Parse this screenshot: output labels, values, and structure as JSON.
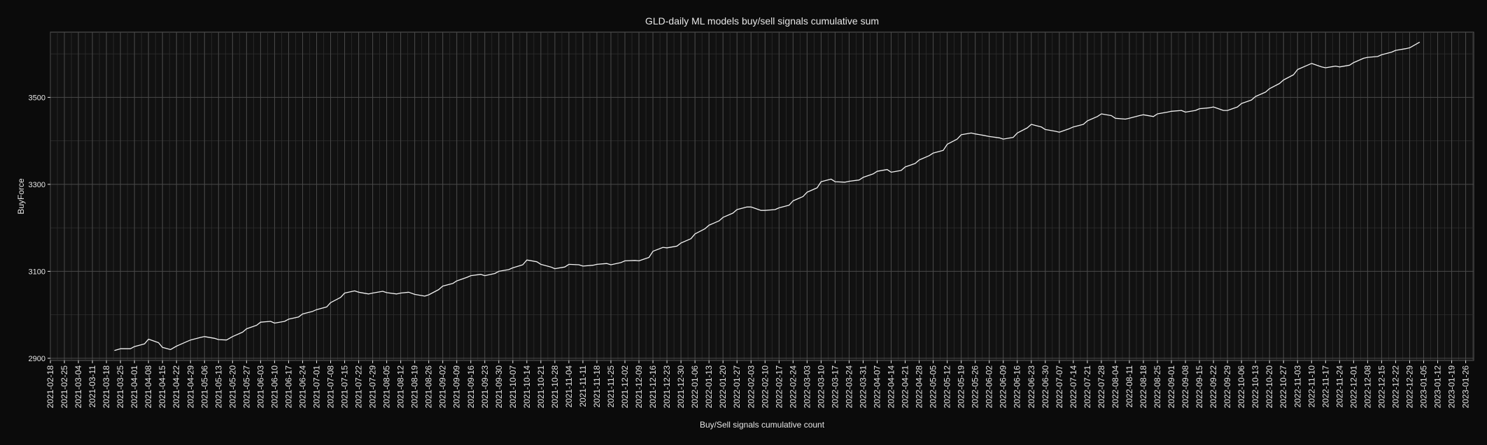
{
  "chart_data": {
    "type": "line",
    "title": "GLD-daily ML models buy/sell signals cumulative sum",
    "xlabel": "Buy/Sell signals cumulative count",
    "ylabel": "BuyForce",
    "ylim": [
      2895,
      3650
    ],
    "xlim": [
      "2021-02-18",
      "2023-01-30"
    ],
    "yticks": [
      2900,
      3100,
      3300,
      3500
    ],
    "xticks": [
      "2021-02-18",
      "2021-02-25",
      "2021-03-04",
      "2021-03-11",
      "2021-03-18",
      "2021-03-25",
      "2021-04-01",
      "2021-04-08",
      "2021-04-15",
      "2021-04-22",
      "2021-04-29",
      "2021-05-06",
      "2021-05-13",
      "2021-05-20",
      "2021-05-27",
      "2021-06-03",
      "2021-06-10",
      "2021-06-17",
      "2021-06-24",
      "2021-07-01",
      "2021-07-08",
      "2021-07-15",
      "2021-07-22",
      "2021-07-29",
      "2021-08-05",
      "2021-08-12",
      "2021-08-19",
      "2021-08-26",
      "2021-09-02",
      "2021-09-09",
      "2021-09-16",
      "2021-09-23",
      "2021-09-30",
      "2021-10-07",
      "2021-10-14",
      "2021-10-21",
      "2021-10-28",
      "2021-11-04",
      "2021-11-11",
      "2021-11-18",
      "2021-11-25",
      "2021-12-02",
      "2021-12-09",
      "2021-12-16",
      "2021-12-23",
      "2021-12-30",
      "2022-01-06",
      "2022-01-13",
      "2022-01-20",
      "2022-01-27",
      "2022-02-03",
      "2022-02-10",
      "2022-02-17",
      "2022-02-24",
      "2022-03-03",
      "2022-03-10",
      "2022-03-17",
      "2022-03-24",
      "2022-03-31",
      "2022-04-07",
      "2022-04-14",
      "2022-04-21",
      "2022-04-28",
      "2022-05-05",
      "2022-05-12",
      "2022-05-19",
      "2022-05-26",
      "2022-06-02",
      "2022-06-09",
      "2022-06-16",
      "2022-06-23",
      "2022-06-30",
      "2022-07-07",
      "2022-07-14",
      "2022-07-21",
      "2022-07-28",
      "2022-08-04",
      "2022-08-11",
      "2022-08-18",
      "2022-08-25",
      "2022-09-01",
      "2022-09-08",
      "2022-09-15",
      "2022-09-22",
      "2022-09-29",
      "2022-10-06",
      "2022-10-13",
      "2022-10-20",
      "2022-10-27",
      "2022-11-03",
      "2022-11-10",
      "2022-11-17",
      "2022-11-24",
      "2022-12-01",
      "2022-12-08",
      "2022-12-15",
      "2022-12-22",
      "2022-12-29",
      "2023-01-05",
      "2023-01-12",
      "2023-01-19",
      "2023-01-26"
    ],
    "grid": true,
    "colors": {
      "background": "#0b0b0b",
      "panel": "#111111",
      "grid": "#4a4a4a",
      "line": "#f2f2f2",
      "text": "#e6e6e6"
    },
    "series": [
      {
        "points": [
          [
            "2021-03-22",
            2918
          ],
          [
            "2021-03-25",
            2922
          ],
          [
            "2021-03-30",
            2922
          ],
          [
            "2021-04-01",
            2927
          ],
          [
            "2021-04-06",
            2933
          ],
          [
            "2021-04-08",
            2944
          ],
          [
            "2021-04-13",
            2936
          ],
          [
            "2021-04-15",
            2925
          ],
          [
            "2021-04-19",
            2920
          ],
          [
            "2021-04-22",
            2928
          ],
          [
            "2021-04-27",
            2938
          ],
          [
            "2021-04-29",
            2942
          ],
          [
            "2021-05-04",
            2948
          ],
          [
            "2021-05-06",
            2950
          ],
          [
            "2021-05-11",
            2946
          ],
          [
            "2021-05-13",
            2943
          ],
          [
            "2021-05-17",
            2942
          ],
          [
            "2021-05-20",
            2950
          ],
          [
            "2021-05-25",
            2960
          ],
          [
            "2021-05-27",
            2968
          ],
          [
            "2021-06-01",
            2976
          ],
          [
            "2021-06-03",
            2983
          ],
          [
            "2021-06-08",
            2985
          ],
          [
            "2021-06-10",
            2981
          ],
          [
            "2021-06-15",
            2985
          ],
          [
            "2021-06-17",
            2990
          ],
          [
            "2021-06-22",
            2995
          ],
          [
            "2021-06-24",
            3002
          ],
          [
            "2021-06-29",
            3008
          ],
          [
            "2021-07-01",
            3012
          ],
          [
            "2021-07-06",
            3018
          ],
          [
            "2021-07-08",
            3028
          ],
          [
            "2021-07-13",
            3040
          ],
          [
            "2021-07-15",
            3050
          ],
          [
            "2021-07-20",
            3055
          ],
          [
            "2021-07-22",
            3052
          ],
          [
            "2021-07-27",
            3048
          ],
          [
            "2021-07-29",
            3050
          ],
          [
            "2021-08-03",
            3054
          ],
          [
            "2021-08-05",
            3051
          ],
          [
            "2021-08-10",
            3048
          ],
          [
            "2021-08-12",
            3050
          ],
          [
            "2021-08-16",
            3052
          ],
          [
            "2021-08-19",
            3047
          ],
          [
            "2021-08-24",
            3043
          ],
          [
            "2021-08-26",
            3046
          ],
          [
            "2021-08-31",
            3058
          ],
          [
            "2021-09-02",
            3066
          ],
          [
            "2021-09-07",
            3072
          ],
          [
            "2021-09-09",
            3078
          ],
          [
            "2021-09-14",
            3086
          ],
          [
            "2021-09-16",
            3090
          ],
          [
            "2021-09-21",
            3093
          ],
          [
            "2021-09-23",
            3090
          ],
          [
            "2021-09-28",
            3095
          ],
          [
            "2021-09-30",
            3100
          ],
          [
            "2021-10-05",
            3104
          ],
          [
            "2021-10-07",
            3108
          ],
          [
            "2021-10-12",
            3115
          ],
          [
            "2021-10-14",
            3126
          ],
          [
            "2021-10-19",
            3122
          ],
          [
            "2021-10-21",
            3116
          ],
          [
            "2021-10-26",
            3110
          ],
          [
            "2021-10-28",
            3106
          ],
          [
            "2021-11-02",
            3110
          ],
          [
            "2021-11-04",
            3116
          ],
          [
            "2021-11-09",
            3115
          ],
          [
            "2021-11-11",
            3112
          ],
          [
            "2021-11-16",
            3114
          ],
          [
            "2021-11-18",
            3116
          ],
          [
            "2021-11-23",
            3118
          ],
          [
            "2021-11-25",
            3115
          ],
          [
            "2021-11-30",
            3120
          ],
          [
            "2021-12-02",
            3124
          ],
          [
            "2021-12-07",
            3125
          ],
          [
            "2021-12-09",
            3124
          ],
          [
            "2021-12-14",
            3132
          ],
          [
            "2021-12-16",
            3146
          ],
          [
            "2021-12-21",
            3155
          ],
          [
            "2021-12-23",
            3154
          ],
          [
            "2021-12-28",
            3158
          ],
          [
            "2021-12-30",
            3165
          ],
          [
            "2022-01-04",
            3175
          ],
          [
            "2022-01-06",
            3186
          ],
          [
            "2022-01-11",
            3198
          ],
          [
            "2022-01-13",
            3206
          ],
          [
            "2022-01-18",
            3216
          ],
          [
            "2022-01-20",
            3224
          ],
          [
            "2022-01-25",
            3234
          ],
          [
            "2022-01-27",
            3242
          ],
          [
            "2022-02-01",
            3248
          ],
          [
            "2022-02-03",
            3248
          ],
          [
            "2022-02-08",
            3240
          ],
          [
            "2022-02-10",
            3240
          ],
          [
            "2022-02-15",
            3242
          ],
          [
            "2022-02-17",
            3246
          ],
          [
            "2022-02-22",
            3252
          ],
          [
            "2022-02-24",
            3262
          ],
          [
            "2022-03-01",
            3272
          ],
          [
            "2022-03-03",
            3282
          ],
          [
            "2022-03-08",
            3292
          ],
          [
            "2022-03-10",
            3306
          ],
          [
            "2022-03-15",
            3312
          ],
          [
            "2022-03-17",
            3306
          ],
          [
            "2022-03-22",
            3305
          ],
          [
            "2022-03-24",
            3307
          ],
          [
            "2022-03-29",
            3310
          ],
          [
            "2022-03-31",
            3316
          ],
          [
            "2022-04-05",
            3324
          ],
          [
            "2022-04-07",
            3330
          ],
          [
            "2022-04-12",
            3334
          ],
          [
            "2022-04-14",
            3328
          ],
          [
            "2022-04-19",
            3332
          ],
          [
            "2022-04-21",
            3340
          ],
          [
            "2022-04-26",
            3348
          ],
          [
            "2022-04-28",
            3356
          ],
          [
            "2022-05-03",
            3366
          ],
          [
            "2022-05-05",
            3372
          ],
          [
            "2022-05-10",
            3378
          ],
          [
            "2022-05-12",
            3392
          ],
          [
            "2022-05-17",
            3404
          ],
          [
            "2022-05-19",
            3414
          ],
          [
            "2022-05-24",
            3418
          ],
          [
            "2022-05-26",
            3416
          ],
          [
            "2022-05-31",
            3412
          ],
          [
            "2022-06-02",
            3410
          ],
          [
            "2022-06-07",
            3407
          ],
          [
            "2022-06-09",
            3404
          ],
          [
            "2022-06-14",
            3408
          ],
          [
            "2022-06-16",
            3418
          ],
          [
            "2022-06-21",
            3430
          ],
          [
            "2022-06-23",
            3438
          ],
          [
            "2022-06-28",
            3432
          ],
          [
            "2022-06-30",
            3426
          ],
          [
            "2022-07-05",
            3422
          ],
          [
            "2022-07-07",
            3420
          ],
          [
            "2022-07-12",
            3428
          ],
          [
            "2022-07-14",
            3432
          ],
          [
            "2022-07-19",
            3438
          ],
          [
            "2022-07-21",
            3446
          ],
          [
            "2022-07-26",
            3456
          ],
          [
            "2022-07-28",
            3462
          ],
          [
            "2022-08-02",
            3458
          ],
          [
            "2022-08-04",
            3452
          ],
          [
            "2022-08-09",
            3450
          ],
          [
            "2022-08-11",
            3452
          ],
          [
            "2022-08-16",
            3458
          ],
          [
            "2022-08-18",
            3460
          ],
          [
            "2022-08-23",
            3456
          ],
          [
            "2022-08-25",
            3462
          ],
          [
            "2022-08-30",
            3466
          ],
          [
            "2022-09-01",
            3468
          ],
          [
            "2022-09-06",
            3470
          ],
          [
            "2022-09-08",
            3466
          ],
          [
            "2022-09-13",
            3470
          ],
          [
            "2022-09-15",
            3474
          ],
          [
            "2022-09-20",
            3476
          ],
          [
            "2022-09-22",
            3478
          ],
          [
            "2022-09-27",
            3470
          ],
          [
            "2022-09-29",
            3470
          ],
          [
            "2022-10-04",
            3478
          ],
          [
            "2022-10-06",
            3486
          ],
          [
            "2022-10-11",
            3494
          ],
          [
            "2022-10-13",
            3502
          ],
          [
            "2022-10-18",
            3512
          ],
          [
            "2022-10-20",
            3520
          ],
          [
            "2022-10-25",
            3532
          ],
          [
            "2022-10-27",
            3540
          ],
          [
            "2022-11-01",
            3552
          ],
          [
            "2022-11-03",
            3564
          ],
          [
            "2022-11-08",
            3574
          ],
          [
            "2022-11-10",
            3578
          ],
          [
            "2022-11-15",
            3570
          ],
          [
            "2022-11-17",
            3568
          ],
          [
            "2022-11-22",
            3572
          ],
          [
            "2022-11-24",
            3570
          ],
          [
            "2022-11-29",
            3574
          ],
          [
            "2022-12-01",
            3580
          ],
          [
            "2022-12-06",
            3590
          ],
          [
            "2022-12-08",
            3592
          ],
          [
            "2022-12-13",
            3594
          ],
          [
            "2022-12-15",
            3598
          ],
          [
            "2022-12-20",
            3604
          ],
          [
            "2022-12-22",
            3608
          ],
          [
            "2022-12-27",
            3612
          ],
          [
            "2022-12-29",
            3614
          ],
          [
            "2023-01-03",
            3627
          ]
        ]
      }
    ]
  }
}
